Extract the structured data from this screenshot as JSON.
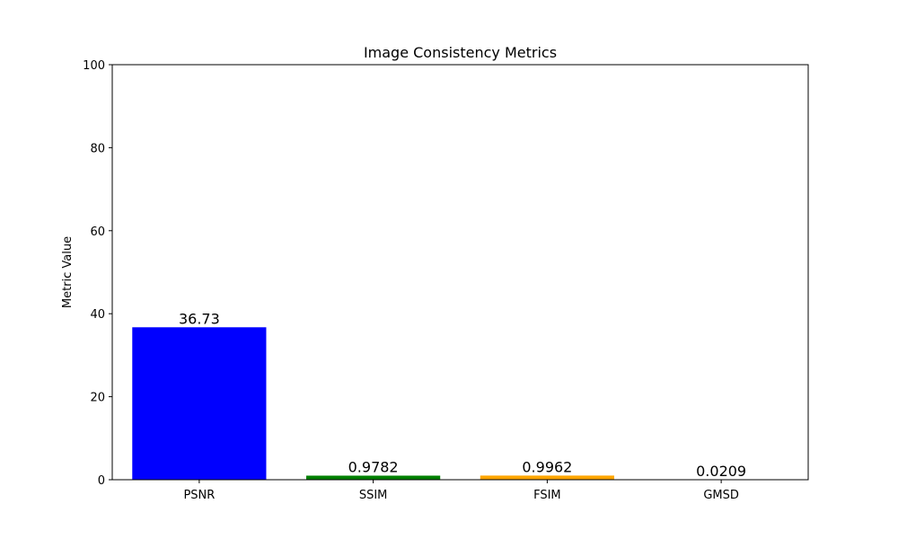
{
  "chart_data": {
    "type": "bar",
    "title": "Image Consistency Metrics",
    "xlabel": "",
    "ylabel": "Metric Value",
    "categories": [
      "PSNR",
      "SSIM",
      "FSIM",
      "GMSD"
    ],
    "values": [
      36.73,
      0.9782,
      0.9962,
      0.0209
    ],
    "value_labels": [
      "36.73",
      "0.9782",
      "0.9962",
      "0.0209"
    ],
    "colors": [
      "#0000ff",
      "#008000",
      "#ffa500",
      "#ff0000"
    ],
    "ylim": [
      0,
      100
    ],
    "yticks": [
      0,
      20,
      40,
      60,
      80,
      100
    ],
    "grid": false,
    "legend": "none"
  }
}
